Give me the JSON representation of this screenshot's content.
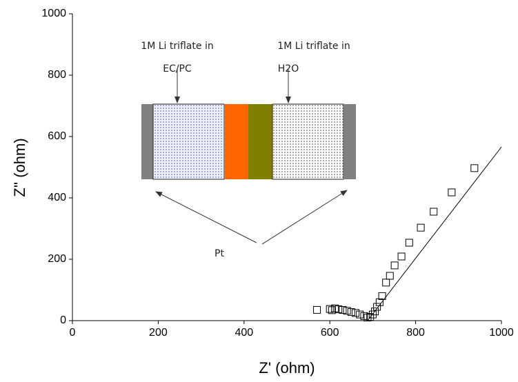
{
  "chart_data": {
    "type": "scatter",
    "xlabel": "Z' (ohm)",
    "ylabel": "Z'' (ohm)",
    "xlim": [
      0,
      1000
    ],
    "ylim": [
      0,
      1000
    ],
    "xticks": [
      0,
      200,
      400,
      600,
      800,
      1000
    ],
    "yticks": [
      0,
      200,
      400,
      600,
      800,
      1000
    ],
    "series": [
      {
        "color": "#000000",
        "marker": "square",
        "x": [
          570,
          600,
          605,
          612,
          620,
          630,
          640,
          650,
          660,
          670,
          680,
          688,
          694,
          700,
          705,
          710,
          716,
          722,
          731,
          740,
          751,
          767,
          785,
          812,
          842,
          884,
          937
        ],
        "values": [
          35,
          38,
          34,
          40,
          37,
          35,
          32,
          28,
          25,
          20,
          15,
          10,
          12,
          20,
          30,
          45,
          60,
          80,
          124,
          146,
          180,
          209,
          254,
          303,
          355,
          418,
          497
        ]
      },
      {
        "color": "#000000",
        "marker": "none",
        "x": [
          688,
          1000
        ],
        "values": [
          0,
          566
        ]
      }
    ],
    "annotations": [
      "1M Li triflate in",
      "EC/PC",
      "1M Li triflate in",
      "H2O",
      "Pt"
    ]
  }
}
